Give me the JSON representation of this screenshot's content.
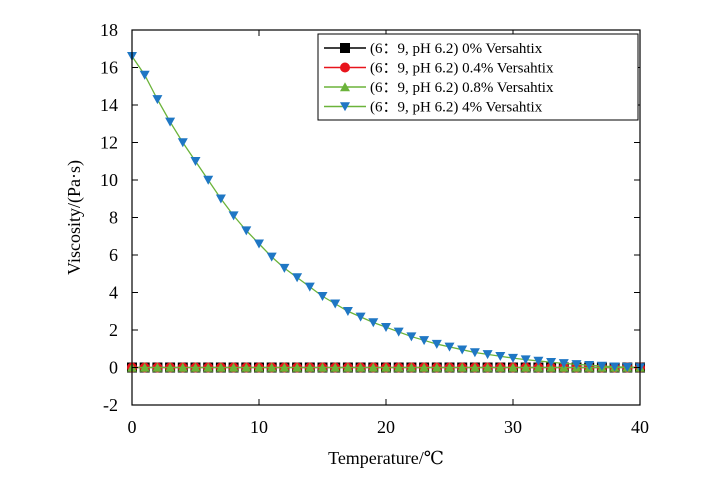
{
  "chart_data": {
    "type": "line",
    "xlabel": "Temperature/℃",
    "ylabel": "Viscosity/(Pa·s)",
    "xlim": [
      0,
      40
    ],
    "ylim": [
      -2,
      18
    ],
    "xticks": [
      0,
      10,
      20,
      30,
      40
    ],
    "yticks": [
      -2,
      0,
      2,
      4,
      6,
      8,
      10,
      12,
      14,
      16,
      18
    ],
    "xtick_labels": [
      "0",
      "10",
      "20",
      "30",
      "40"
    ],
    "ytick_labels": [
      "-2",
      "0",
      "2",
      "4",
      "6",
      "8",
      "10",
      "12",
      "14",
      "16",
      "18"
    ],
    "grid": false,
    "legend_position": "top-right",
    "x": [
      0,
      1,
      2,
      3,
      4,
      5,
      6,
      7,
      8,
      9,
      10,
      11,
      12,
      13,
      14,
      15,
      16,
      17,
      18,
      19,
      20,
      21,
      22,
      23,
      24,
      25,
      26,
      27,
      28,
      29,
      30,
      31,
      32,
      33,
      34,
      35,
      36,
      37,
      38,
      39,
      40
    ],
    "series": [
      {
        "name": "(6：9, pH 6.2) 0% Versahtix",
        "color": "#000000",
        "marker": "square",
        "values": [
          0,
          0,
          0,
          0,
          0,
          0,
          0,
          0,
          0,
          0,
          0,
          0,
          0,
          0,
          0,
          0,
          0,
          0,
          0,
          0,
          0,
          0,
          0,
          0,
          0,
          0,
          0,
          0,
          0,
          0,
          0,
          0,
          0,
          0,
          0,
          0,
          0,
          0,
          0,
          0,
          0
        ]
      },
      {
        "name": "(6：9, pH 6.2) 0.4% Versahtix",
        "color": "#e8141c",
        "marker": "circle",
        "values": [
          0,
          0,
          0,
          0,
          0,
          0,
          0,
          0,
          0,
          0,
          0,
          0,
          0,
          0,
          0,
          0,
          0,
          0,
          0,
          0,
          0,
          0,
          0,
          0,
          0,
          0,
          0,
          0,
          0,
          0,
          0,
          0,
          0,
          0,
          0,
          0,
          0,
          0,
          0,
          0,
          0
        ]
      },
      {
        "name": "(6：9, pH 6.2) 0.8% Versahtix",
        "color": "#6bb33a",
        "marker": "triangle-up",
        "values": [
          0,
          0,
          0,
          0,
          0,
          0,
          0,
          0,
          0,
          0,
          0,
          0,
          0,
          0,
          0,
          0,
          0,
          0,
          0,
          0,
          0,
          0,
          0,
          0,
          0,
          0,
          0,
          0,
          0,
          0,
          0,
          0,
          0,
          0,
          0,
          0,
          0,
          0,
          0,
          0,
          0
        ]
      },
      {
        "name": "(6：9, pH 6.2) 4% Versahtix",
        "color": "#1f77c4",
        "line_color": "#6bb33a",
        "marker": "triangle-down",
        "values": [
          16.6,
          15.6,
          14.3,
          13.1,
          12.0,
          11.0,
          10.0,
          9.0,
          8.1,
          7.3,
          6.6,
          5.9,
          5.3,
          4.8,
          4.3,
          3.8,
          3.4,
          3.0,
          2.7,
          2.4,
          2.15,
          1.9,
          1.65,
          1.45,
          1.25,
          1.1,
          0.95,
          0.8,
          0.7,
          0.6,
          0.5,
          0.42,
          0.35,
          0.28,
          0.22,
          0.17,
          0.12,
          0.08,
          0.04,
          0.02,
          0.0
        ]
      }
    ]
  }
}
